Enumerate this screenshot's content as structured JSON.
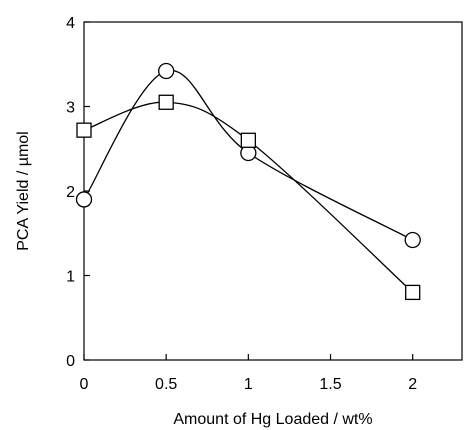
{
  "chart_data": {
    "type": "line",
    "title": "",
    "xlabel": "Amount of Hg Loaded / wt%",
    "ylabel": "PCA Yield / µmol",
    "xlim": [
      0,
      2.3
    ],
    "ylim": [
      0,
      4
    ],
    "xticks": [
      0,
      0.5,
      1,
      1.5,
      2
    ],
    "xtick_labels": [
      "0",
      "0.5",
      "1",
      "1.5",
      "2"
    ],
    "yticks": [
      0,
      1,
      2,
      3,
      4
    ],
    "ytick_labels": [
      "0",
      "1",
      "2",
      "3",
      "4"
    ],
    "grid": false,
    "legend": "none",
    "series": [
      {
        "marker": "circle",
        "x": [
          0,
          0.5,
          1,
          2
        ],
        "y": [
          1.9,
          3.42,
          2.45,
          1.42
        ]
      },
      {
        "marker": "square",
        "x": [
          0,
          0.5,
          1,
          2
        ],
        "y": [
          2.72,
          3.05,
          2.6,
          0.8
        ]
      }
    ],
    "colors": {
      "line": "#000000",
      "marker_fill": "#ffffff"
    }
  }
}
